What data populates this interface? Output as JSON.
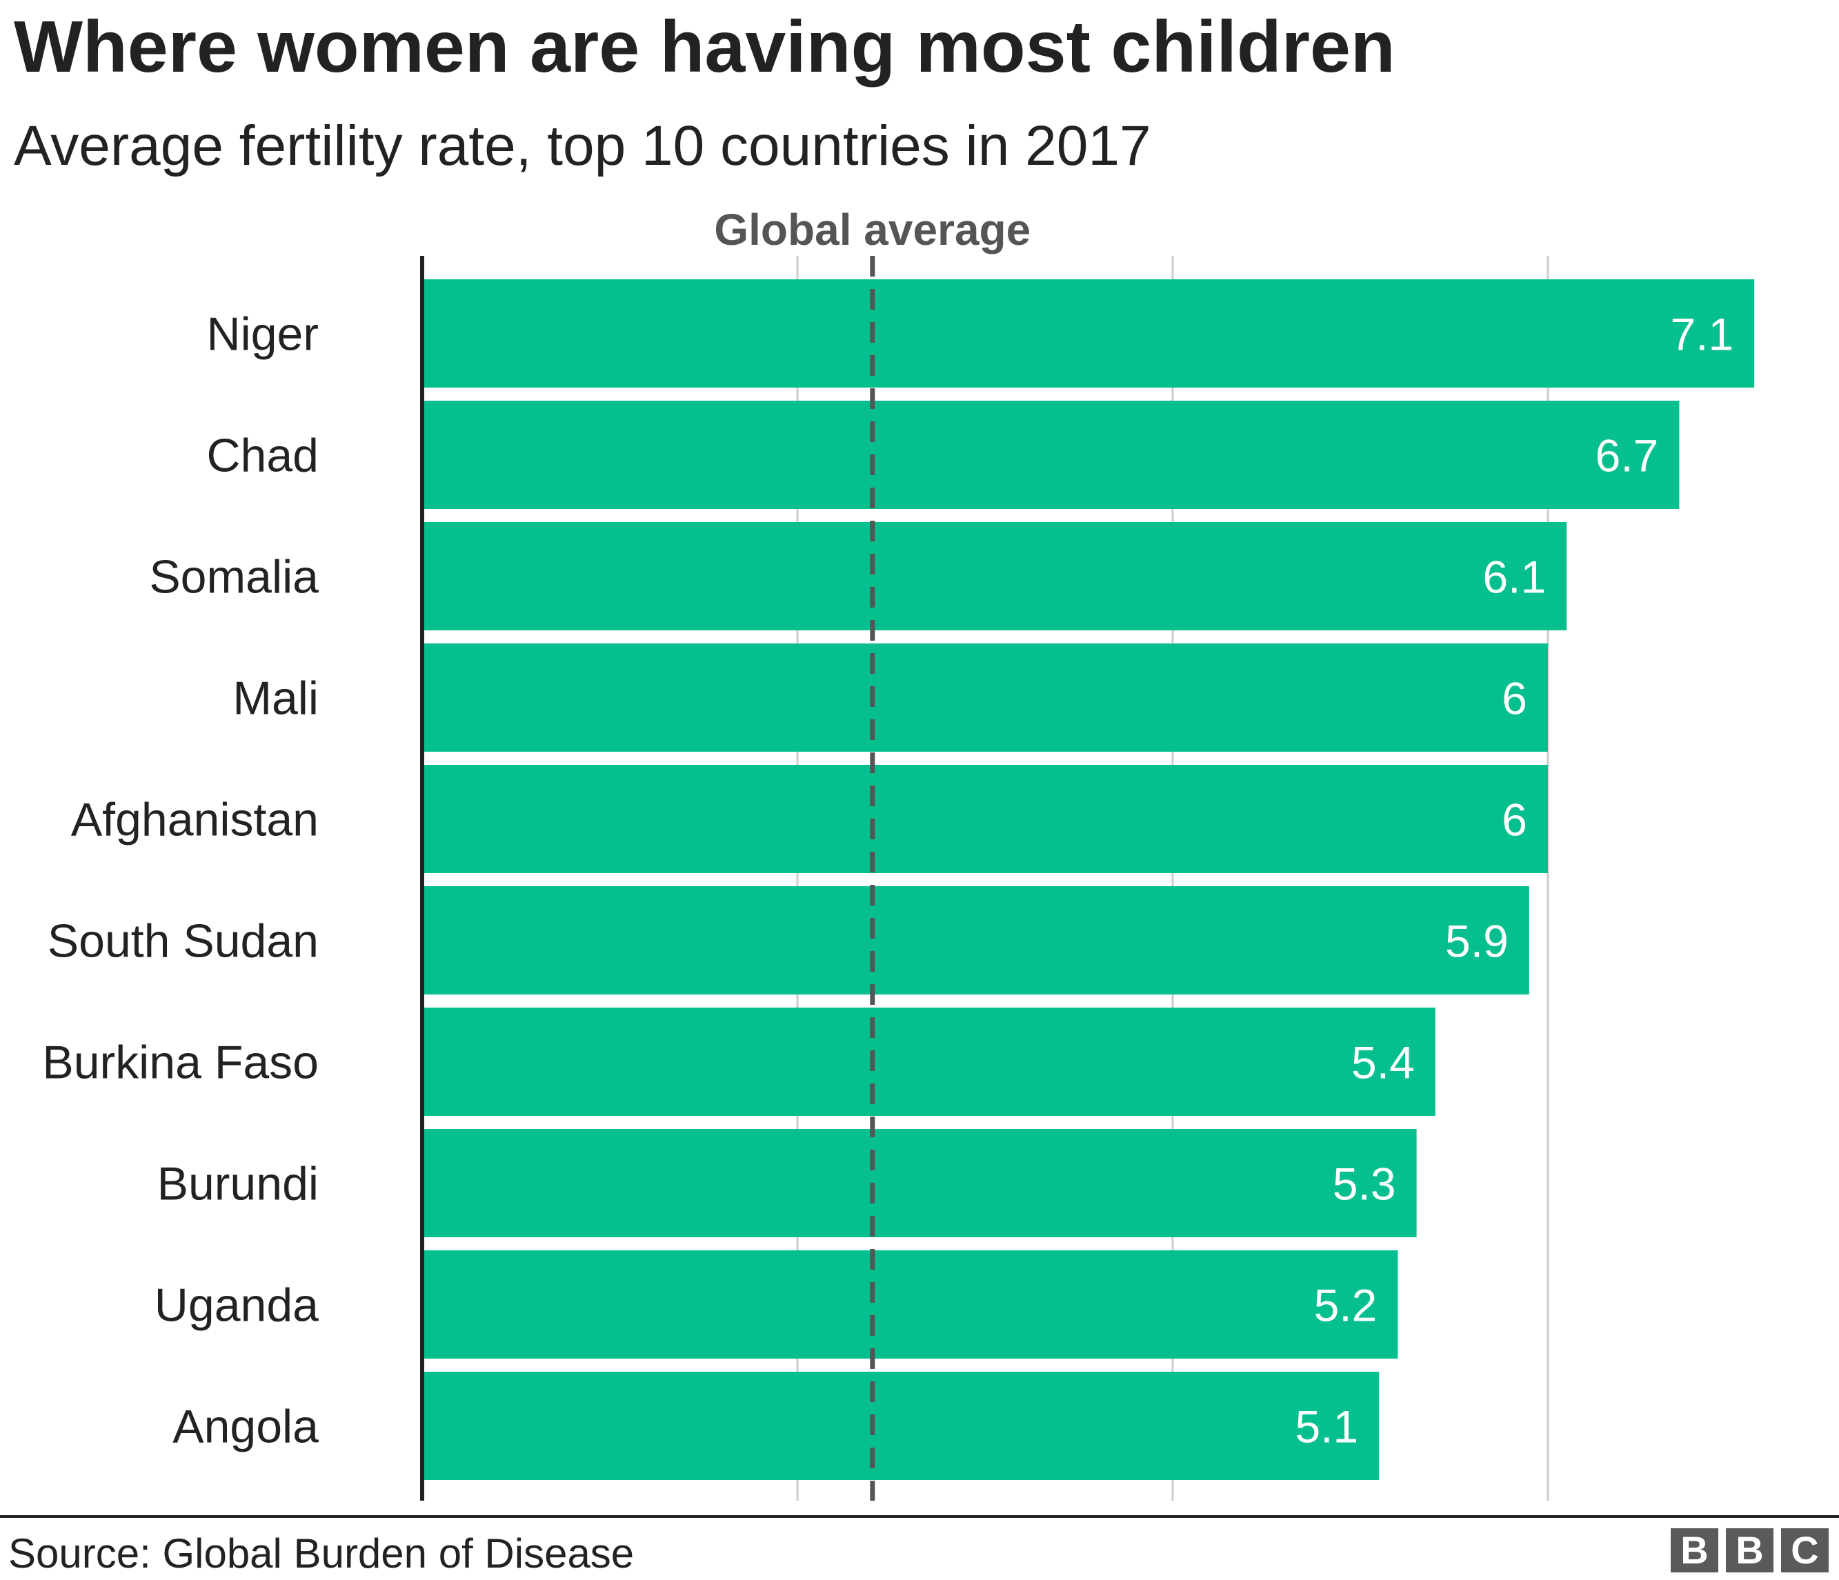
{
  "title": "Where women are having most children",
  "subtitle": "Average fertility rate, top 10 countries in 2017",
  "source": "Source: Global Burden of Disease",
  "logo": "BBC",
  "chart_data": {
    "type": "bar",
    "orientation": "horizontal",
    "title": "Where women are having most children",
    "subtitle": "Average fertility rate, top 10 countries in 2017",
    "categories": [
      "Niger",
      "Chad",
      "Somalia",
      "Mali",
      "Afghanistan",
      "South Sudan",
      "Burkina Faso",
      "Burundi",
      "Uganda",
      "Angola"
    ],
    "values": [
      7.1,
      6.7,
      6.1,
      6,
      6,
      5.9,
      5.4,
      5.3,
      5.2,
      5.1
    ],
    "value_labels": [
      "7.1",
      "6.7",
      "6.1",
      "6",
      "6",
      "5.9",
      "5.4",
      "5.3",
      "5.2",
      "5.1"
    ],
    "xlim": [
      0,
      7.2
    ],
    "gridlines": [
      2,
      4,
      6
    ],
    "tick_labels_shown": false,
    "reference_line": {
      "label": "Global average",
      "value": 2.4,
      "style": "dashed"
    },
    "colors": {
      "bar": "#06bf8f",
      "reference": "#555555",
      "grid": "#cccccc",
      "axis": "#222222"
    }
  }
}
